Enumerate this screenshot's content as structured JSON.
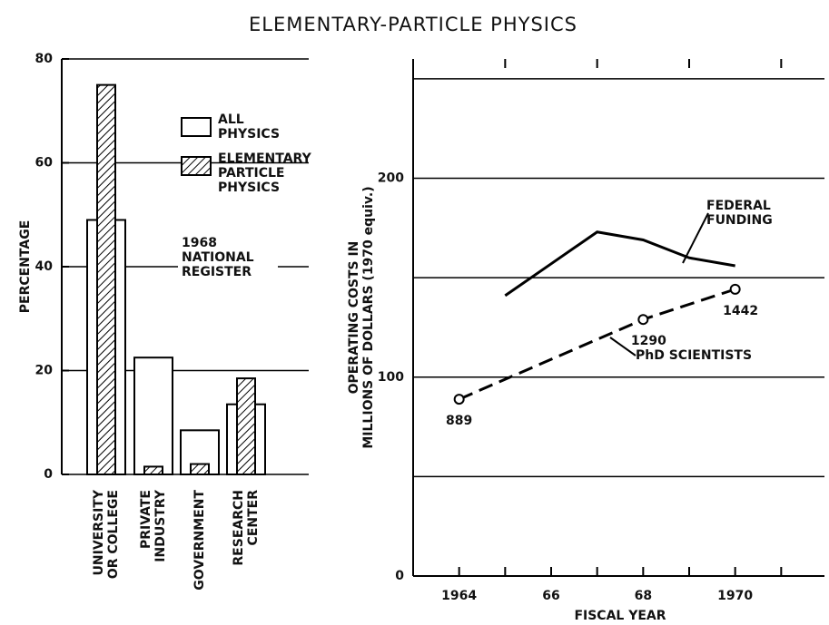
{
  "title": "ELEMENTARY-PARTICLE PHYSICS",
  "chart_data": [
    {
      "type": "bar",
      "categories": [
        "UNIVERSITY\nOR COLLEGE",
        "PRIVATE\nINDUSTRY",
        "GOVERNMENT",
        "RESEARCH\nCENTER"
      ],
      "series": [
        {
          "name": "ALL\nPHYSICS",
          "color": "#000000",
          "hatch": false,
          "values": [
            49,
            22.5,
            8.5,
            13.5
          ]
        },
        {
          "name": "ELEMENTARY\nPARTICLE\nPHYSICS",
          "color": "#000000",
          "hatch": true,
          "values": [
            75,
            1.5,
            2,
            18.5
          ]
        }
      ],
      "ylabel": "PERCENTAGE",
      "ylim": [
        0,
        80
      ],
      "yticks": [
        0,
        20,
        40,
        60,
        80
      ],
      "grid": true,
      "annotation": "1968\nNATIONAL\nREGISTER"
    },
    {
      "type": "line",
      "xlabel": "FISCAL YEAR",
      "ylabel": "OPERATING COSTS IN\nMILLIONS OF DOLLARS (1970 equiv.)",
      "xlim": [
        1963,
        1972
      ],
      "xticks": [
        1964,
        {
          "value": 1966,
          "label": "66"
        },
        {
          "value": 1968,
          "label": "68"
        },
        1970
      ],
      "minor_xticks": [
        1965,
        1967,
        1969,
        1971
      ],
      "ylim": [
        0,
        260
      ],
      "yticks": [
        0,
        100,
        200
      ],
      "minor_yticks": [
        50,
        150,
        250
      ],
      "grid": true,
      "y2lim": [
        0,
        2600
      ],
      "series": [
        {
          "name": "FEDERAL\nFUNDING",
          "color": "#000000",
          "dashed": false,
          "markers": false,
          "x": [
            1965,
            1966,
            1967,
            1968,
            1969,
            1970
          ],
          "values": [
            141,
            157,
            173,
            169,
            160,
            156
          ]
        },
        {
          "name": "PhD SCIENTISTS",
          "color": "#000000",
          "axis": "y2",
          "dashed": true,
          "markers": true,
          "x": [
            1964,
            1968,
            1970
          ],
          "values": [
            889,
            1290,
            1442
          ]
        }
      ]
    }
  ]
}
